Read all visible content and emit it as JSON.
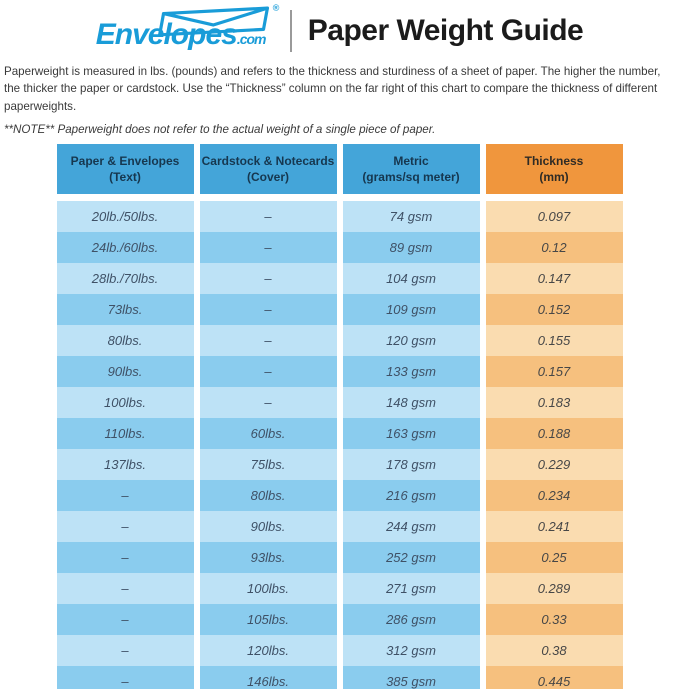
{
  "header": {
    "logo": {
      "brand": "Envelopes",
      "tld": ".com",
      "registered": "®"
    },
    "title": "Paper Weight Guide"
  },
  "intro": "Paperweight is measured in lbs. (pounds) and refers to the thickness and sturdiness of a sheet of paper. The higher the number, the thicker the paper or cardstock. Use the “Thickness” column on the far right of this chart to compare the thickness of different paperweights.",
  "note": "**NOTE** Paperweight does not refer to the actual weight of a single piece of paper.",
  "chart_data": {
    "type": "table",
    "columns": [
      {
        "line1": "Paper & Envelopes",
        "line2": "(Text)"
      },
      {
        "line1": "Cardstock & Notecards",
        "line2": "(Cover)"
      },
      {
        "line1": "Metric",
        "line2": "(grams/sq meter)"
      },
      {
        "line1": "Thickness",
        "line2": "(mm)"
      }
    ],
    "rows": [
      [
        "20lb./50lbs.",
        "–",
        "74 gsm",
        "0.097"
      ],
      [
        "24lb./60lbs.",
        "–",
        "89 gsm",
        "0.12"
      ],
      [
        "28lb./70lbs.",
        "–",
        "104 gsm",
        "0.147"
      ],
      [
        "73lbs.",
        "–",
        "109 gsm",
        "0.152"
      ],
      [
        "80lbs.",
        "–",
        "120 gsm",
        "0.155"
      ],
      [
        "90lbs.",
        "–",
        "133 gsm",
        "0.157"
      ],
      [
        "100lbs.",
        "–",
        "148 gsm",
        "0.183"
      ],
      [
        "110lbs.",
        "60lbs.",
        "163 gsm",
        "0.188"
      ],
      [
        "137lbs.",
        "75lbs.",
        "178 gsm",
        "0.229"
      ],
      [
        "–",
        "80lbs.",
        "216 gsm",
        "0.234"
      ],
      [
        "–",
        "90lbs.",
        "244 gsm",
        "0.241"
      ],
      [
        "–",
        "93lbs.",
        "252 gsm",
        "0.25"
      ],
      [
        "–",
        "100lbs.",
        "271 gsm",
        "0.289"
      ],
      [
        "–",
        "105lbs.",
        "286 gsm",
        "0.33"
      ],
      [
        "–",
        "120lbs.",
        "312 gsm",
        "0.38"
      ],
      [
        "–",
        "146lbs.",
        "385 gsm",
        "0.445"
      ]
    ]
  },
  "colors": {
    "brand_blue": "#199cd8",
    "header_blue": "#44a5d9",
    "header_orange": "#f0963d",
    "row_blue_light": "#bde2f6",
    "row_blue_dark": "#8accee",
    "row_orange_light": "#fadcb0",
    "row_orange_dark": "#f6c07e",
    "cell_text_blue": "#3f5166",
    "cell_text_orange": "#474747"
  }
}
